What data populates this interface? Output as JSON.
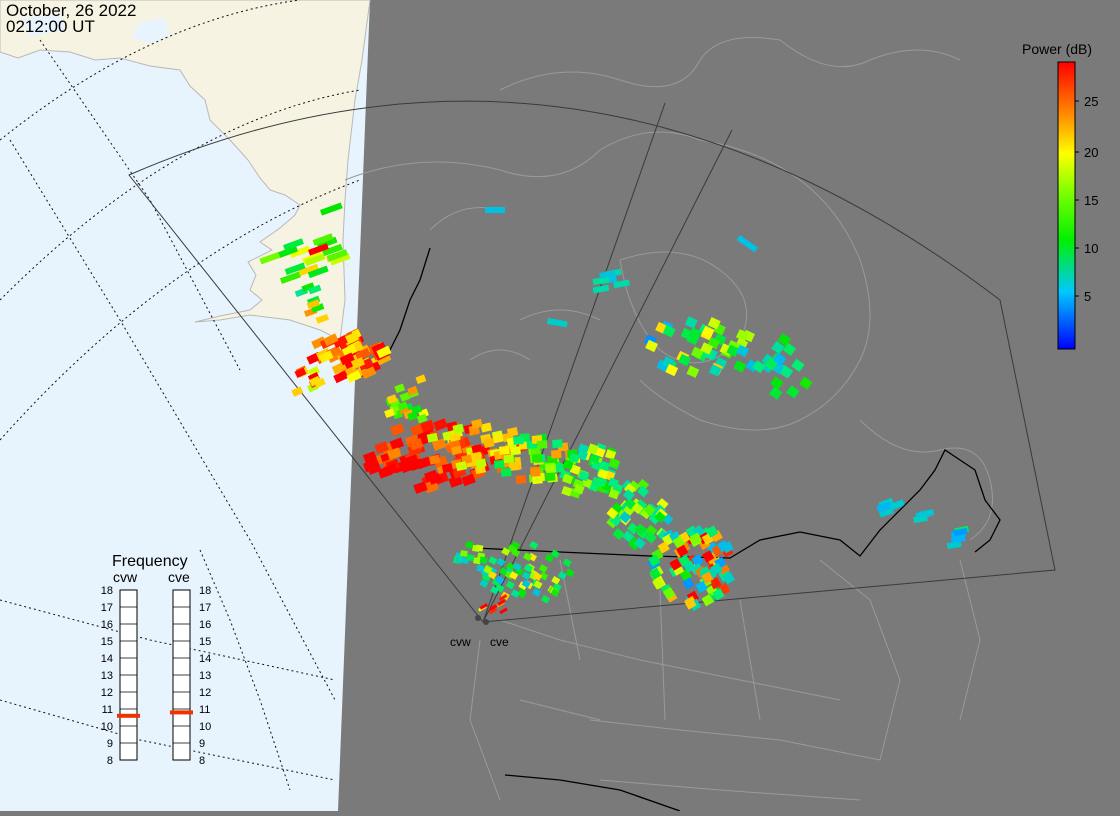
{
  "header": {
    "date": "October, 26 2022",
    "time": "0212:00 UT"
  },
  "colorbar": {
    "title": "Power (dB)",
    "ticks": [
      "25",
      "20",
      "15",
      "10",
      "5"
    ],
    "range": [
      0,
      29
    ]
  },
  "frequency": {
    "title": "Frequency",
    "columns": [
      {
        "name": "cvw",
        "selected_mhz": 10.6,
        "accent": "#ee3300"
      },
      {
        "name": "cve",
        "selected_mhz": 10.8,
        "accent": "#ee3300"
      }
    ],
    "scale_labels": [
      "18",
      "17",
      "16",
      "15",
      "14",
      "13",
      "12",
      "11",
      "10",
      "9",
      "8"
    ]
  },
  "radars": [
    {
      "name": "cvw"
    },
    {
      "name": "cve"
    }
  ],
  "colors": {
    "ocean": "#e8f4fd",
    "land": "#f7f3e3",
    "night": "#7a7a7a"
  }
}
